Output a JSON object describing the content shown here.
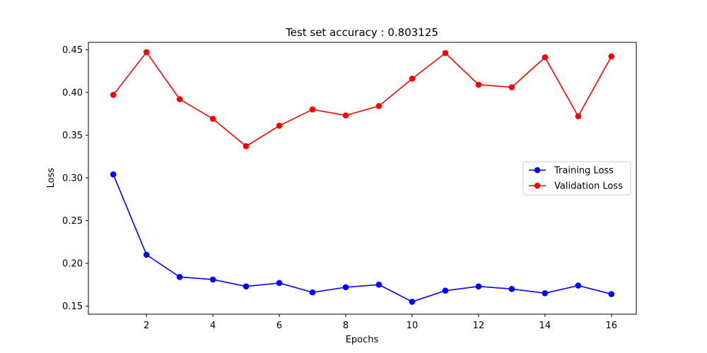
{
  "chart_data": {
    "type": "line",
    "title": "Test set accuracy : 0.803125",
    "xlabel": "Epochs",
    "ylabel": "Loss",
    "x": [
      1,
      2,
      3,
      4,
      5,
      6,
      7,
      8,
      9,
      10,
      11,
      12,
      13,
      14,
      15,
      16
    ],
    "xlim": [
      0.25,
      16.75
    ],
    "ylim": [
      0.1405,
      0.4585
    ],
    "xticks": [
      2,
      4,
      6,
      8,
      10,
      12,
      14,
      16
    ],
    "yticks": [
      0.15,
      0.2,
      0.25,
      0.3,
      0.35,
      0.4,
      0.45
    ],
    "xtick_labels": [
      "2",
      "4",
      "6",
      "8",
      "10",
      "12",
      "14",
      "16"
    ],
    "ytick_labels": [
      "0.15",
      "0.20",
      "0.25",
      "0.30",
      "0.35",
      "0.40",
      "0.45"
    ],
    "grid": false,
    "legend_position": "center-right",
    "series": [
      {
        "name": "Training Loss",
        "color": "#0000ff",
        "marker": "circle",
        "values": [
          0.304,
          0.21,
          0.184,
          0.181,
          0.173,
          0.177,
          0.166,
          0.172,
          0.175,
          0.155,
          0.168,
          0.173,
          0.17,
          0.165,
          0.174,
          0.164
        ]
      },
      {
        "name": "Validation Loss",
        "color": "#ff0000",
        "marker": "circle",
        "values": [
          0.397,
          0.447,
          0.392,
          0.369,
          0.337,
          0.361,
          0.38,
          0.373,
          0.384,
          0.416,
          0.446,
          0.409,
          0.406,
          0.441,
          0.372,
          0.442
        ]
      }
    ]
  }
}
